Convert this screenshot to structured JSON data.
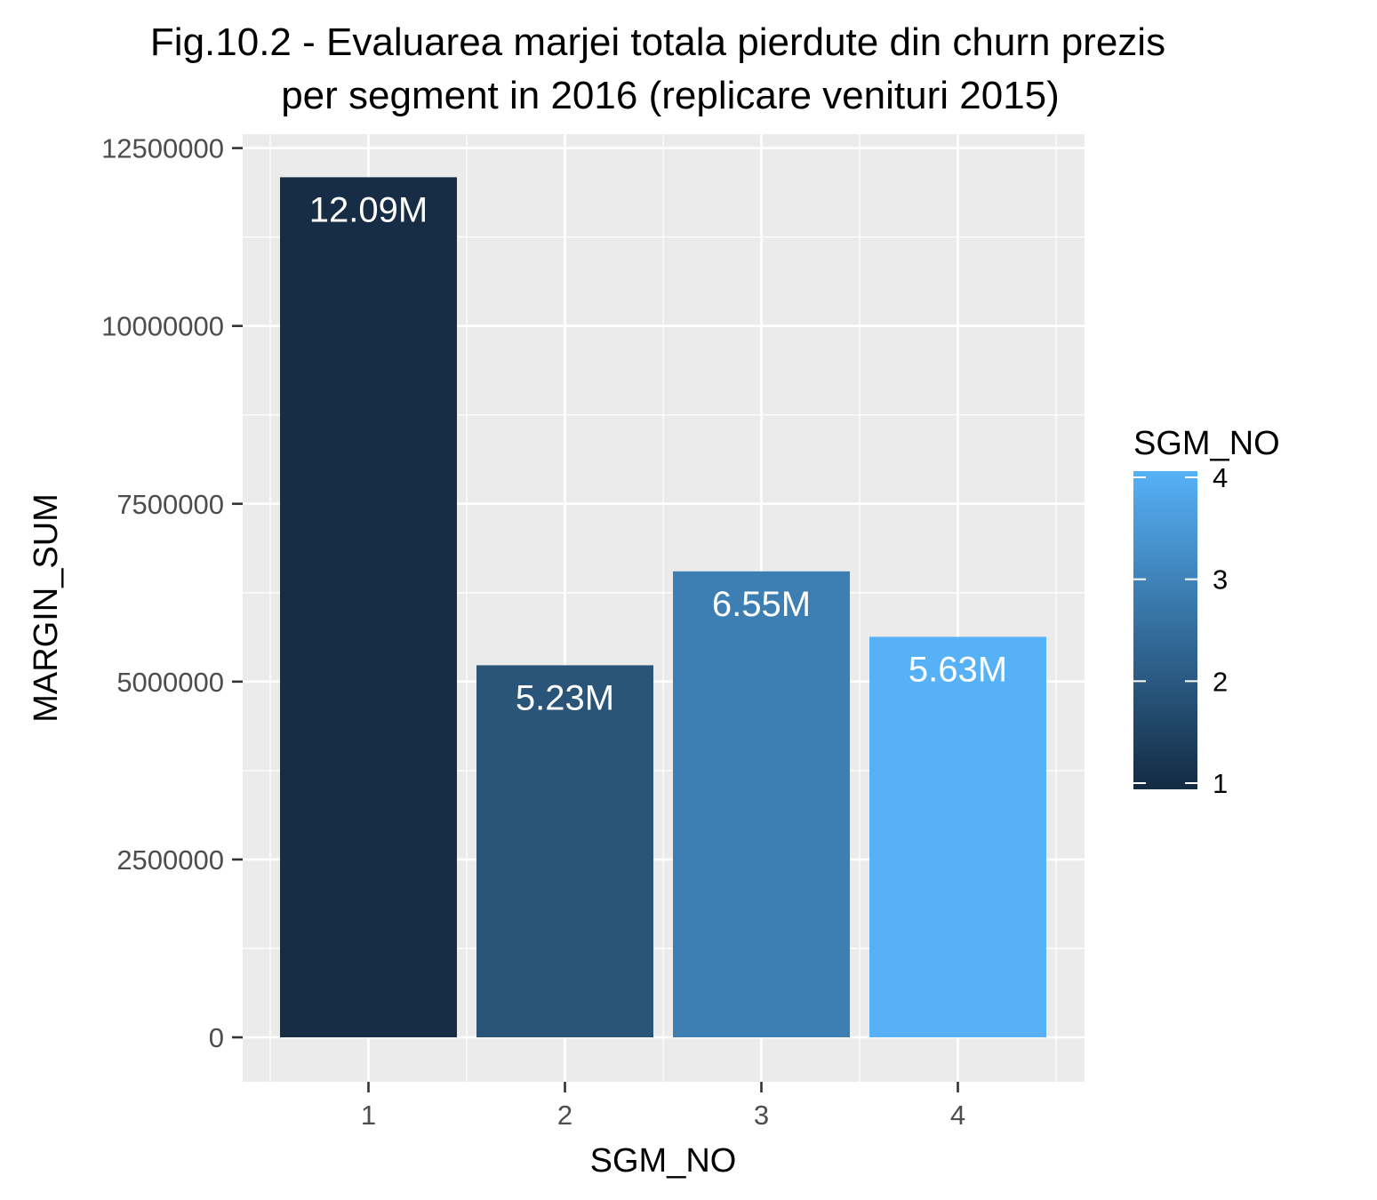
{
  "chart_data": {
    "type": "bar",
    "title_lines": [
      "Fig.10.2 - Evaluarea marjei totala pierdute din churn prezis",
      "per segment in 2016 (replicare venituri 2015)"
    ],
    "xlabel": "SGM_NO",
    "ylabel": "MARGIN_SUM",
    "categories": [
      "1",
      "2",
      "3",
      "4"
    ],
    "values": [
      12090000,
      5230000,
      6550000,
      5630000
    ],
    "data_labels": [
      "12.09M",
      "5.23M",
      "6.55M",
      "5.63M"
    ],
    "ylim": [
      0,
      12500000
    ],
    "yticks": [
      0,
      2500000,
      5000000,
      7500000,
      10000000,
      12500000
    ],
    "ytick_labels": [
      "0",
      "2500000",
      "5000000",
      "7500000",
      "10000000",
      "12500000"
    ],
    "grid": true,
    "panel_color": "#ebebeb",
    "bar_colors": [
      "#172c45",
      "#2a5579",
      "#3d7fb3",
      "#56b1f7"
    ],
    "legend": {
      "title": "SGM_NO",
      "position": "right",
      "type": "colorbar",
      "breaks": [
        1,
        2,
        3,
        4
      ],
      "labels": [
        "1",
        "2",
        "3",
        "4"
      ],
      "low_color": "#132b43",
      "high_color": "#56b1f7"
    }
  }
}
